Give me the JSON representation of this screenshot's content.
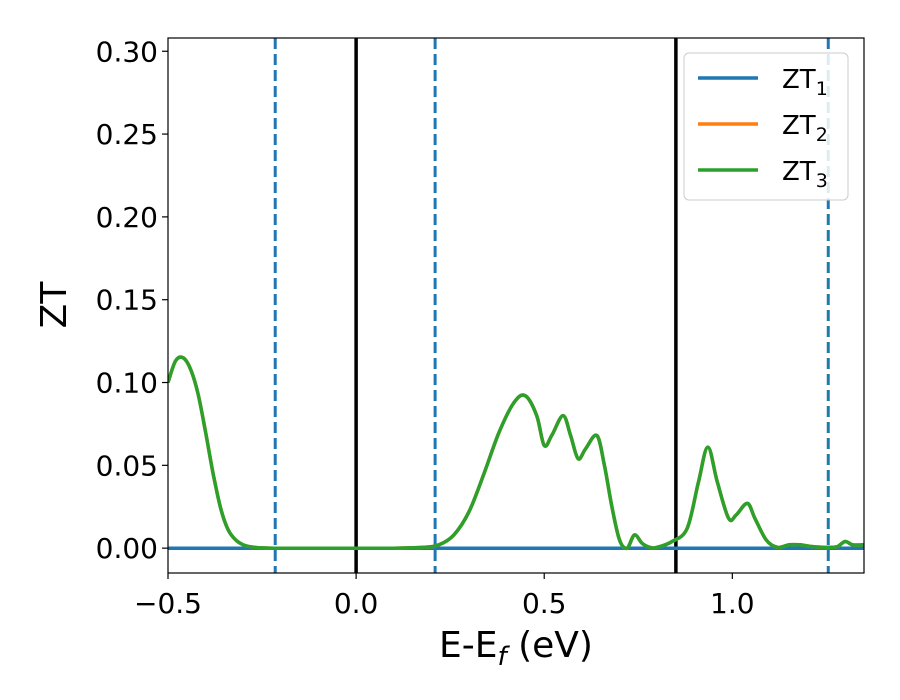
{
  "chart_data": {
    "type": "line",
    "xlabel": "E-E",
    "xlabel_sub": "f",
    "xlabel_unit": " (eV)",
    "ylabel": "ZT",
    "xlim": [
      -0.5,
      1.35
    ],
    "ylim": [
      -0.015,
      0.308
    ],
    "x_ticks": [
      {
        "value": -0.5,
        "label": "−0.5"
      },
      {
        "value": 0.0,
        "label": "0.0"
      },
      {
        "value": 0.5,
        "label": "0.5"
      },
      {
        "value": 1.0,
        "label": "1.0"
      }
    ],
    "y_ticks": [
      {
        "value": 0.0,
        "label": "0.00"
      },
      {
        "value": 0.05,
        "label": "0.05"
      },
      {
        "value": 0.1,
        "label": "0.10"
      },
      {
        "value": 0.15,
        "label": "0.15"
      },
      {
        "value": 0.2,
        "label": "0.20"
      },
      {
        "value": 0.25,
        "label": "0.25"
      },
      {
        "value": 0.3,
        "label": "0.30"
      }
    ],
    "grid": false,
    "legend_position": "top-right",
    "vlines": [
      {
        "x": 0.0,
        "style": "solid",
        "color": "#000000"
      },
      {
        "x": 0.85,
        "style": "solid",
        "color": "#000000"
      },
      {
        "x": -0.215,
        "style": "dashed",
        "color": "#1f77b4"
      },
      {
        "x": 0.21,
        "style": "dashed",
        "color": "#1f77b4"
      },
      {
        "x": 1.255,
        "style": "dashed",
        "color": "#1f77b4"
      }
    ],
    "series": [
      {
        "name": "ZT",
        "name_sub": "1",
        "color": "#1f77b4",
        "x": [
          -0.5,
          1.35
        ],
        "y": [
          0.0,
          0.0
        ]
      },
      {
        "name": "ZT",
        "name_sub": "2",
        "color": "#ff7f0e",
        "x": [
          -0.5,
          -0.48,
          -0.46,
          -0.44,
          -0.42,
          -0.4,
          -0.38,
          -0.36,
          -0.34,
          -0.32,
          -0.3,
          -0.28,
          -0.26,
          -0.24,
          -0.22,
          -0.2,
          -0.1,
          0.0,
          0.1,
          0.18,
          0.22,
          0.26,
          0.3,
          0.34,
          0.38,
          0.42,
          0.45,
          0.48,
          0.5,
          0.52,
          0.55,
          0.57,
          0.59,
          0.61,
          0.64,
          0.66,
          0.68,
          0.7,
          0.72,
          0.74,
          0.76,
          0.78,
          0.8,
          0.84,
          0.88,
          0.91,
          0.935,
          0.96,
          0.99,
          1.01,
          1.04,
          1.06,
          1.09,
          1.12,
          1.15,
          1.18,
          1.21,
          1.24,
          1.26,
          1.28,
          1.3,
          1.32,
          1.35
        ],
        "y": [
          0.1,
          0.113,
          0.115,
          0.108,
          0.093,
          0.07,
          0.045,
          0.024,
          0.011,
          0.005,
          0.002,
          0.0008,
          0.0003,
          0.0001,
          0.0,
          0.0,
          0.0,
          0.0,
          0.0,
          0.0005,
          0.002,
          0.008,
          0.022,
          0.045,
          0.07,
          0.088,
          0.092,
          0.08,
          0.062,
          0.068,
          0.08,
          0.068,
          0.054,
          0.06,
          0.068,
          0.05,
          0.025,
          0.005,
          0.0,
          0.008,
          0.003,
          0.0005,
          0.0005,
          0.004,
          0.012,
          0.04,
          0.061,
          0.04,
          0.018,
          0.02,
          0.027,
          0.018,
          0.005,
          0.0005,
          0.002,
          0.002,
          0.001,
          0.0005,
          0.0005,
          0.001,
          0.004,
          0.002,
          0.002
        ]
      },
      {
        "name": "ZT",
        "name_sub": "3",
        "color": "#2ca02c",
        "x": [
          -0.5,
          -0.48,
          -0.46,
          -0.44,
          -0.42,
          -0.4,
          -0.38,
          -0.36,
          -0.34,
          -0.32,
          -0.3,
          -0.28,
          -0.26,
          -0.24,
          -0.22,
          -0.2,
          -0.1,
          0.0,
          0.1,
          0.18,
          0.22,
          0.26,
          0.3,
          0.34,
          0.38,
          0.42,
          0.45,
          0.48,
          0.5,
          0.52,
          0.55,
          0.57,
          0.59,
          0.61,
          0.64,
          0.66,
          0.68,
          0.7,
          0.72,
          0.74,
          0.76,
          0.78,
          0.8,
          0.84,
          0.88,
          0.91,
          0.935,
          0.96,
          0.99,
          1.01,
          1.04,
          1.06,
          1.09,
          1.12,
          1.15,
          1.18,
          1.21,
          1.24,
          1.26,
          1.28,
          1.3,
          1.32,
          1.35
        ],
        "y": [
          0.1,
          0.113,
          0.115,
          0.108,
          0.093,
          0.07,
          0.045,
          0.024,
          0.011,
          0.005,
          0.002,
          0.0008,
          0.0003,
          0.0001,
          0.0,
          0.0,
          0.0,
          0.0,
          0.0,
          0.0005,
          0.002,
          0.008,
          0.022,
          0.045,
          0.07,
          0.088,
          0.092,
          0.08,
          0.062,
          0.068,
          0.08,
          0.068,
          0.054,
          0.06,
          0.068,
          0.05,
          0.025,
          0.005,
          0.0,
          0.008,
          0.003,
          0.0005,
          0.0005,
          0.004,
          0.012,
          0.04,
          0.061,
          0.04,
          0.018,
          0.02,
          0.027,
          0.018,
          0.005,
          0.0005,
          0.002,
          0.002,
          0.001,
          0.0005,
          0.0005,
          0.001,
          0.004,
          0.002,
          0.002
        ]
      }
    ]
  }
}
